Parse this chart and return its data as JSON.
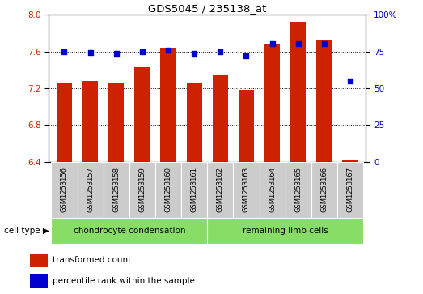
{
  "title": "GDS5045 / 235138_at",
  "samples": [
    "GSM1253156",
    "GSM1253157",
    "GSM1253158",
    "GSM1253159",
    "GSM1253160",
    "GSM1253161",
    "GSM1253162",
    "GSM1253163",
    "GSM1253164",
    "GSM1253165",
    "GSM1253166",
    "GSM1253167"
  ],
  "transformed_count": [
    7.25,
    7.28,
    7.26,
    7.43,
    7.64,
    7.25,
    7.35,
    7.18,
    7.68,
    7.92,
    7.72,
    6.42
  ],
  "percentile_rank": [
    75,
    74,
    73.5,
    75,
    76,
    73.5,
    75,
    72,
    80,
    80,
    80,
    55
  ],
  "ylim_left": [
    6.4,
    8.0
  ],
  "ylim_right": [
    0,
    100
  ],
  "yticks_left": [
    6.4,
    6.8,
    7.2,
    7.6,
    8.0
  ],
  "yticks_right": [
    0,
    25,
    50,
    75,
    100
  ],
  "bar_color": "#cc2200",
  "dot_color": "#0000cc",
  "grid_color": "#000000",
  "bg_color": "#ffffff",
  "group1_label": "chondrocyte condensation",
  "group2_label": "remaining limb cells",
  "group_color": "#88dd66",
  "cell_type_label": "cell type",
  "legend_bar_label": "transformed count",
  "legend_dot_label": "percentile rank within the sample",
  "n_group1": 6,
  "n_group2": 6,
  "tick_bg_color": "#cccccc",
  "bar_width": 0.6
}
